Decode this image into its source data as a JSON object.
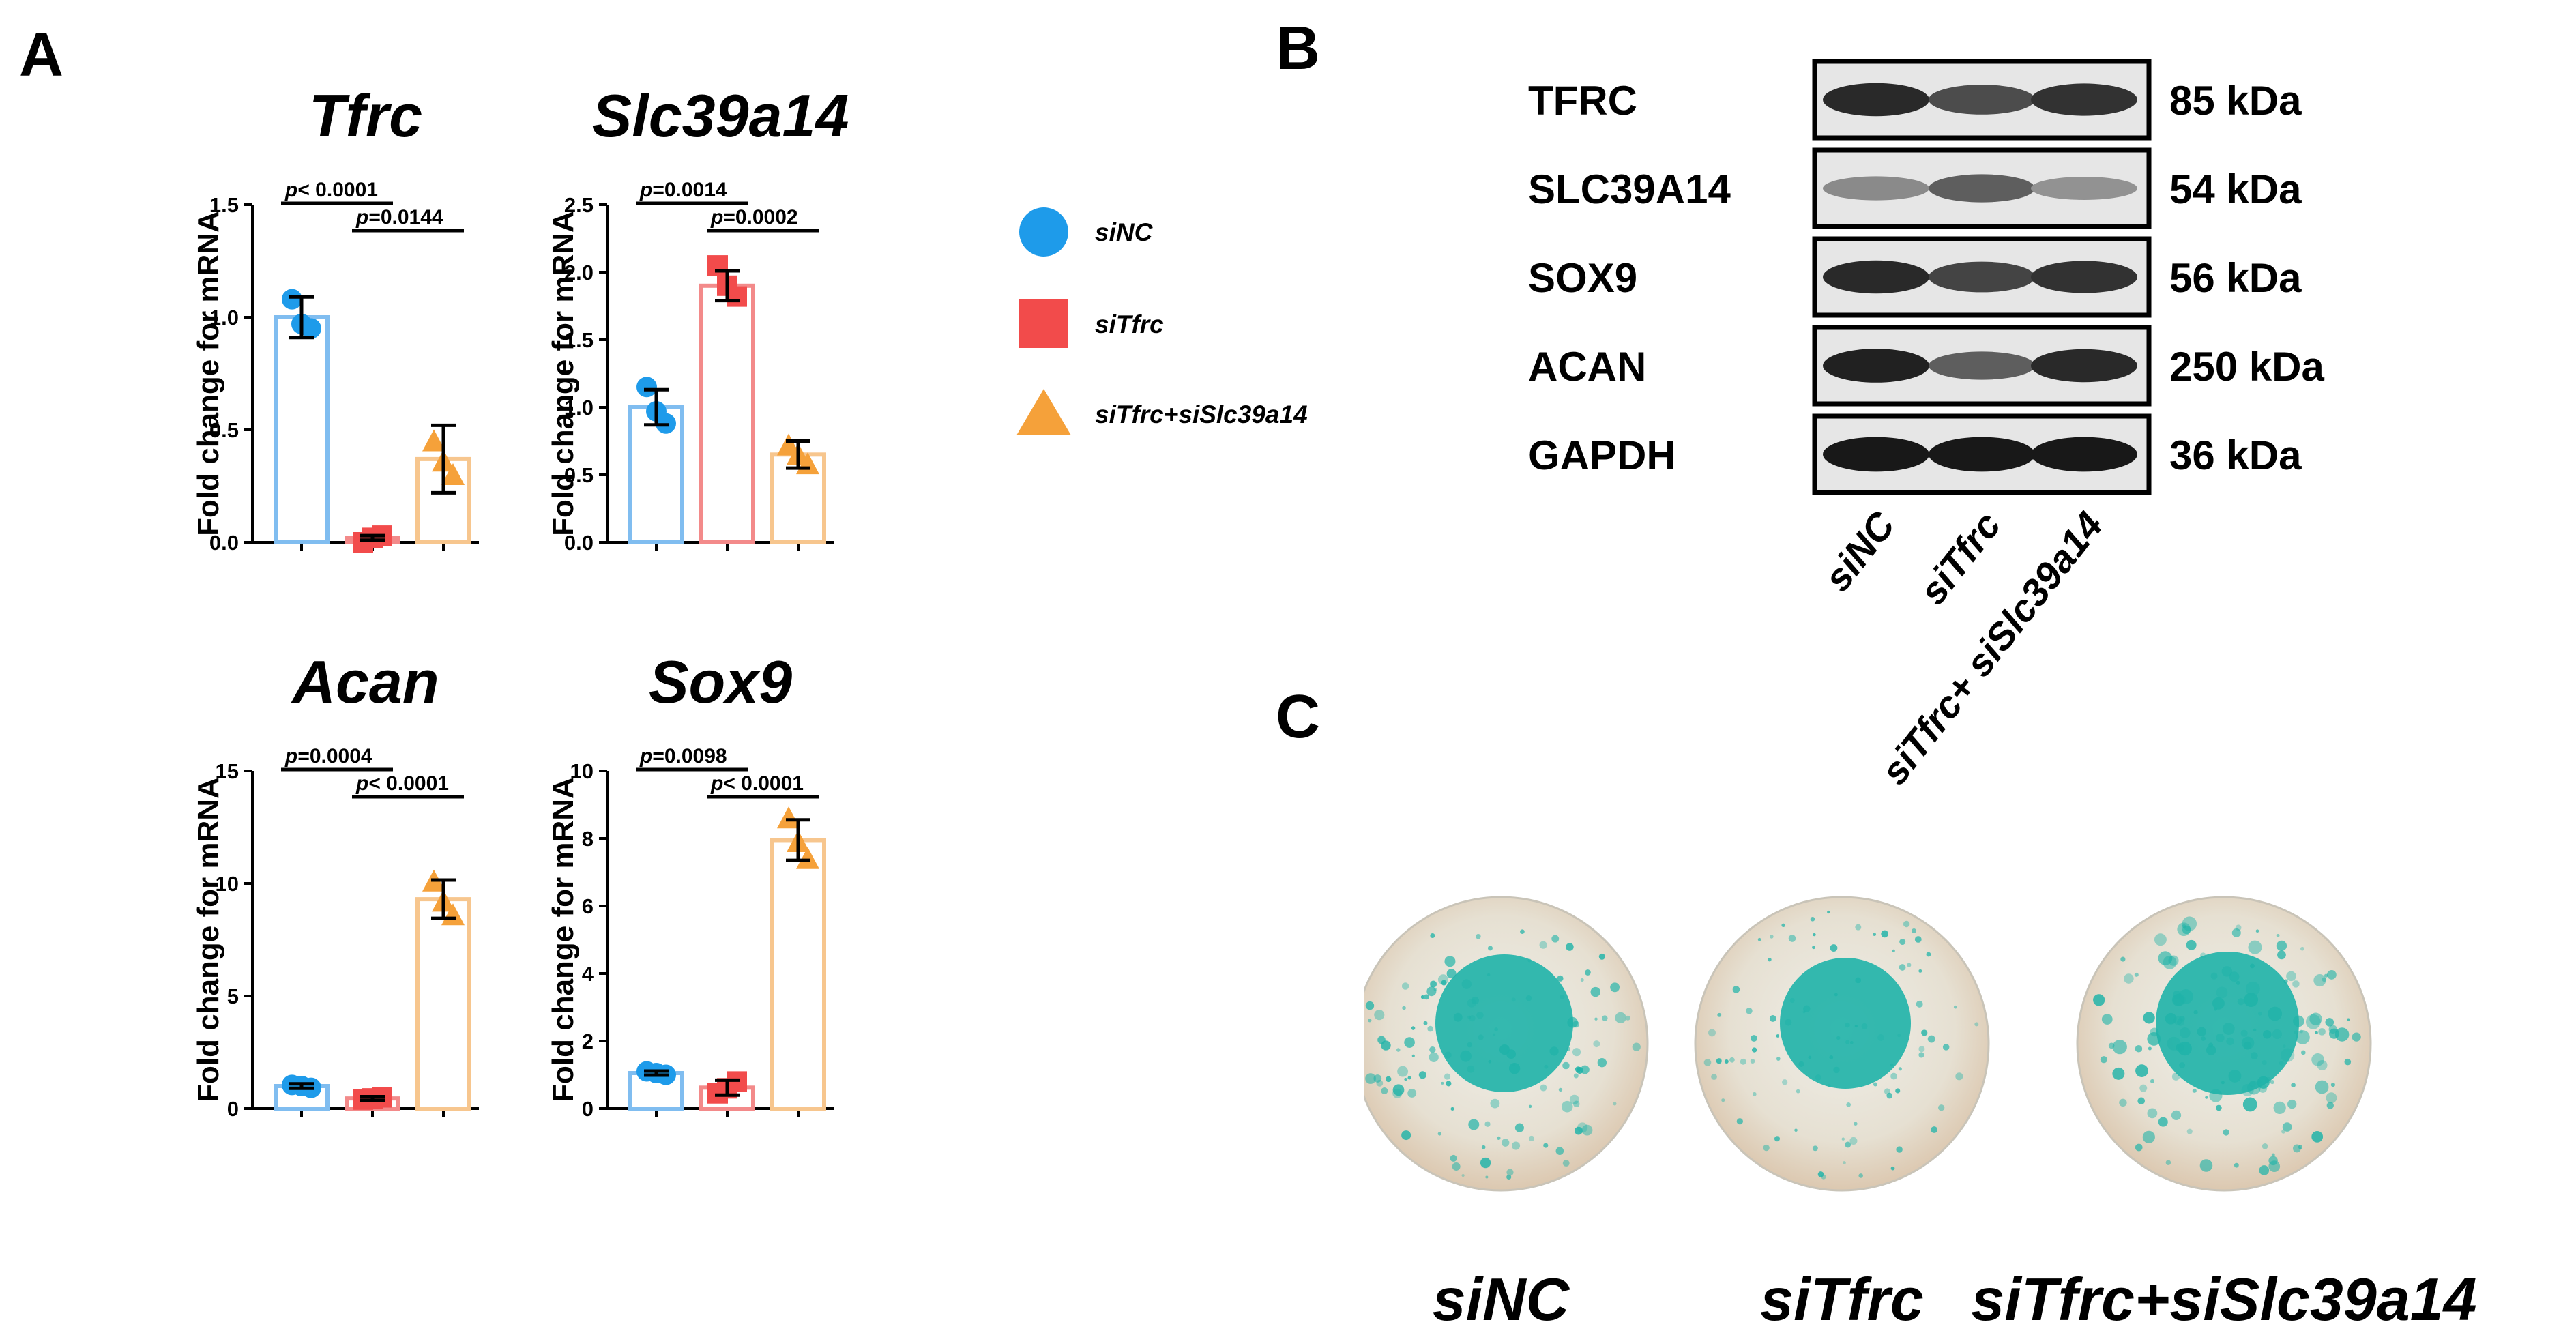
{
  "panels": {
    "a": "A",
    "b": "B",
    "c": "C"
  },
  "colors": {
    "siNC": "#1e9bea",
    "siTfrc": "#f24b4b",
    "siTfrc_siSlc39a14": "#f5a13a",
    "siNC_bar": "#80bdf0",
    "siTfrc_bar": "#f38a8a",
    "siTfrc_siSlc39a14_bar": "#f7c68e",
    "stain": "#1fb3a8"
  },
  "groups": [
    "siNC",
    "siTfrc",
    "siTfrc+siSlc39a14"
  ],
  "legend": [
    {
      "label": "siNC",
      "marker": "circle"
    },
    {
      "label": "siTfrc",
      "marker": "square"
    },
    {
      "label": "siTfrc+siSlc39a14",
      "marker": "triangle"
    }
  ],
  "chart_data": [
    {
      "type": "bar",
      "title": "Tfrc",
      "ylabel": "Fold change for mRNA",
      "categories": [
        "siNC",
        "siTfrc",
        "siTfrc+siSlc39a14"
      ],
      "values": [
        1.0,
        0.02,
        0.37
      ],
      "errors": [
        0.09,
        0.01,
        0.15
      ],
      "points": [
        [
          1.08,
          0.95,
          0.97
        ],
        [
          0.0,
          0.03,
          0.02
        ],
        [
          0.45,
          0.3,
          0.36
        ]
      ],
      "ylim": [
        0,
        1.5
      ],
      "yticks": [
        "0.0",
        "0.5",
        "1.0",
        "1.5"
      ],
      "brackets": [
        {
          "from": 0,
          "to": 1,
          "label": "p< 0.0001"
        },
        {
          "from": 1,
          "to": 2,
          "label": "p=0.0144"
        }
      ]
    },
    {
      "type": "bar",
      "title": "Slc39a14",
      "ylabel": "Fold change for mRNA",
      "categories": [
        "siNC",
        "siTfrc",
        "siTfrc+siSlc39a14"
      ],
      "values": [
        1.0,
        1.9,
        0.65
      ],
      "errors": [
        0.13,
        0.11,
        0.1
      ],
      "points": [
        [
          1.15,
          0.88,
          0.97
        ],
        [
          2.05,
          1.82,
          1.9
        ],
        [
          0.72,
          0.58,
          0.65
        ]
      ],
      "ylim": [
        0,
        2.5
      ],
      "yticks": [
        "0.0",
        "0.5",
        "1.0",
        "1.5",
        "2.0",
        "2.5"
      ],
      "brackets": [
        {
          "from": 0,
          "to": 1,
          "label": "p=0.0014"
        },
        {
          "from": 1,
          "to": 2,
          "label": "p=0.0002"
        }
      ]
    },
    {
      "type": "bar",
      "title": "Acan",
      "ylabel": "Fold change for mRNA",
      "categories": [
        "siNC",
        "siTfrc",
        "siTfrc+siSlc39a14"
      ],
      "values": [
        1.0,
        0.45,
        9.3
      ],
      "errors": [
        0.1,
        0.08,
        0.85
      ],
      "points": [
        [
          1.05,
          0.92,
          1.0
        ],
        [
          0.4,
          0.5,
          0.45
        ],
        [
          10.1,
          8.6,
          9.2
        ]
      ],
      "ylim": [
        0,
        15
      ],
      "yticks": [
        "0",
        "5",
        "10",
        "15"
      ],
      "brackets": [
        {
          "from": 0,
          "to": 1,
          "label": "p=0.0004"
        },
        {
          "from": 1,
          "to": 2,
          "label": "p< 0.0001"
        }
      ]
    },
    {
      "type": "bar",
      "title": "Sox9",
      "ylabel": "Fold change for mRNA",
      "categories": [
        "siNC",
        "siTfrc",
        "siTfrc+siSlc39a14"
      ],
      "values": [
        1.05,
        0.62,
        7.95
      ],
      "errors": [
        0.06,
        0.22,
        0.6
      ],
      "points": [
        [
          1.1,
          1.0,
          1.05
        ],
        [
          0.45,
          0.8,
          0.6
        ],
        [
          8.6,
          7.4,
          7.9
        ]
      ],
      "ylim": [
        0,
        10
      ],
      "yticks": [
        "0",
        "2",
        "4",
        "6",
        "8",
        "10"
      ],
      "brackets": [
        {
          "from": 0,
          "to": 1,
          "label": "p=0.0098"
        },
        {
          "from": 1,
          "to": 2,
          "label": "p< 0.0001"
        }
      ]
    }
  ],
  "western_blot": {
    "rows": [
      {
        "protein": "TFRC",
        "kda": "85 kDa",
        "intensity": [
          0.85,
          0.65,
          0.8
        ]
      },
      {
        "protein": "SLC39A14",
        "kda": "54 kDa",
        "intensity": [
          0.3,
          0.55,
          0.25
        ]
      },
      {
        "protein": "SOX9",
        "kda": "56 kDa",
        "intensity": [
          0.85,
          0.7,
          0.8
        ]
      },
      {
        "protein": "ACAN",
        "kda": "250 kDa",
        "intensity": [
          0.9,
          0.55,
          0.85
        ]
      },
      {
        "protein": "GAPDH",
        "kda": "36 kDa",
        "intensity": [
          0.95,
          0.95,
          0.95
        ]
      }
    ],
    "lane_labels": [
      "siNC",
      "siTfrc",
      "siTfrc+ siSlc39a14"
    ]
  },
  "plates": [
    {
      "label": "siNC",
      "stain_level": 0.55
    },
    {
      "label": "siTfrc",
      "stain_level": 0.3
    },
    {
      "label": "siTfrc+siSlc39a14",
      "stain_level": 0.75
    }
  ]
}
